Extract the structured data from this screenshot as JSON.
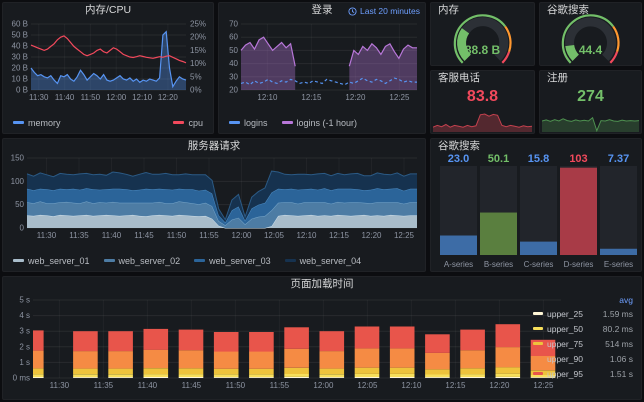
{
  "ui": {
    "time_badge": "Last 20 minutes",
    "clock_icon": "clock-icon"
  },
  "chart_data": [
    {
      "id": "memory_cpu",
      "type": "line",
      "title": "内存/CPU",
      "x_ticks": [
        "11:30",
        "11:40",
        "11:50",
        "12:00",
        "12:10",
        "12:20"
      ],
      "y_left": {
        "ticks": [
          "0 B",
          "10 B",
          "20 B",
          "30 B",
          "40 B",
          "50 B",
          "60 B"
        ],
        "min": 0,
        "max": 60
      },
      "y_right": {
        "ticks": [
          "0%",
          "5%",
          "10%",
          "15%",
          "20%",
          "25%"
        ],
        "min": 0,
        "max": 25
      },
      "legend_position": "bottom",
      "series": [
        {
          "name": "memory",
          "color": "#5794F2",
          "axis": "left",
          "area": true,
          "values": [
            20,
            16,
            13,
            14,
            12,
            11,
            13,
            9,
            6,
            13,
            12,
            14,
            10,
            8,
            12,
            18,
            14,
            9,
            12,
            15,
            13,
            10,
            14,
            9,
            8,
            9,
            11,
            13,
            10,
            9,
            11,
            8,
            10,
            7,
            9,
            8,
            10,
            9,
            8,
            11,
            50,
            53,
            20,
            3,
            8,
            12,
            10,
            9
          ]
        },
        {
          "name": "cpu",
          "color": "#F2495C",
          "axis": "right",
          "area": false,
          "values": [
            17,
            16.5,
            16,
            15.5,
            15,
            15.5,
            16.5,
            17.5,
            19,
            20,
            20.5,
            19.5,
            18,
            16.5,
            15.5,
            14.5,
            13.5,
            13,
            13.5,
            14,
            15,
            15.5,
            14.5,
            14,
            15,
            16,
            15.5,
            14.5,
            13.5,
            13,
            12.5,
            12.3,
            12.6,
            13,
            12.7,
            12.4,
            12.2,
            12,
            12.3,
            12.6,
            12.4,
            12.8,
            13,
            12.4,
            11.8,
            11.2,
            10.8,
            10.3
          ]
        }
      ]
    },
    {
      "id": "logins",
      "type": "line",
      "title": "登录",
      "x_ticks": [
        "12:10",
        "12:15",
        "12:20",
        "12:25"
      ],
      "y_left": {
        "ticks": [
          "20",
          "30",
          "40",
          "50",
          "60",
          "70"
        ],
        "min": 20,
        "max": 70
      },
      "series": [
        {
          "name": "logins",
          "color": "#5794F2",
          "dash": true,
          "area": false,
          "values": [
            25,
            26,
            24,
            27,
            25,
            26,
            28,
            26,
            25,
            27,
            26,
            28,
            27,
            25,
            26,
            25,
            27,
            26,
            25,
            28,
            27,
            26,
            25,
            24,
            26,
            25,
            27,
            29,
            27,
            26,
            28,
            27,
            25,
            27,
            29,
            28,
            26,
            27,
            26,
            26
          ]
        },
        {
          "name": "logins (-1 hour)",
          "color": "#B877D9",
          "area": true,
          "values": [
            50,
            54,
            56,
            51,
            58,
            60,
            55,
            50,
            53,
            56,
            52,
            55,
            38,
            null,
            null,
            null,
            null,
            null,
            null,
            null,
            null,
            null,
            null,
            null,
            38,
            50,
            47,
            53,
            50,
            55,
            52,
            47,
            53,
            55,
            49,
            44,
            51,
            54,
            52,
            52
          ]
        }
      ]
    },
    {
      "id": "server_requests",
      "type": "area-stacked",
      "title": "服务器请求",
      "x_ticks": [
        "11:30",
        "11:35",
        "11:40",
        "11:45",
        "11:50",
        "11:55",
        "12:00",
        "12:05",
        "12:10",
        "12:15",
        "12:20",
        "12:25"
      ],
      "y_ticks": [
        "0",
        "50",
        "100",
        "150"
      ],
      "y_max": 150,
      "series": [
        {
          "name": "web_server_01",
          "fill": "#A9BDCB",
          "line": "#CFE0EB",
          "values": [
            27,
            26,
            28,
            27,
            25,
            28,
            27,
            26,
            27,
            28,
            26,
            27,
            28,
            27,
            26,
            27,
            28,
            26,
            25,
            27,
            28,
            27,
            26,
            28,
            27,
            26,
            25,
            26,
            20,
            5,
            0,
            0,
            0,
            0,
            0,
            0,
            0,
            4,
            26,
            28,
            27,
            26,
            27,
            28,
            26,
            27,
            26,
            28,
            27,
            26,
            27,
            28,
            26,
            27,
            26,
            28,
            27,
            26,
            27,
            27
          ]
        },
        {
          "name": "web_server_02",
          "fill": "#4D7CA4",
          "line": "#77A5C8",
          "values": [
            28,
            27,
            29,
            26,
            28,
            27,
            29,
            28,
            26,
            29,
            27,
            28,
            26,
            29,
            28,
            27,
            26,
            28,
            29,
            27,
            28,
            26,
            27,
            29,
            28,
            27,
            26,
            28,
            27,
            10,
            6,
            18,
            22,
            8,
            20,
            24,
            26,
            34,
            28,
            27,
            28,
            26,
            28,
            27,
            29,
            28,
            26,
            28,
            27,
            29,
            28,
            26,
            27,
            28,
            29,
            27,
            28,
            26,
            28,
            28
          ]
        },
        {
          "name": "web_server_03",
          "fill": "#2B6499",
          "line": "#4C8BC2",
          "values": [
            29,
            28,
            27,
            30,
            28,
            29,
            27,
            30,
            29,
            28,
            30,
            27,
            29,
            28,
            30,
            29,
            27,
            28,
            30,
            29,
            28,
            30,
            29,
            27,
            28,
            30,
            29,
            28,
            27,
            12,
            6,
            20,
            24,
            8,
            22,
            26,
            28,
            38,
            30,
            28,
            29,
            30,
            28,
            29,
            27,
            30,
            29,
            28,
            30,
            29,
            28,
            27,
            29,
            30,
            28,
            29,
            30,
            28,
            29,
            29
          ]
        },
        {
          "name": "web_server_04",
          "fill": "#16324F",
          "line": "#2B5A85",
          "values": [
            32,
            30,
            34,
            31,
            29,
            33,
            32,
            30,
            34,
            32,
            31,
            33,
            30,
            36,
            34,
            32,
            30,
            33,
            35,
            32,
            31,
            34,
            32,
            30,
            33,
            31,
            34,
            32,
            28,
            14,
            6,
            22,
            26,
            8,
            24,
            28,
            32,
            46,
            36,
            32,
            30,
            33,
            32,
            30,
            34,
            32,
            31,
            33,
            30,
            32,
            34,
            31,
            30,
            33,
            32,
            30,
            33,
            31,
            32,
            32
          ]
        }
      ]
    },
    {
      "id": "google_bars",
      "type": "bar",
      "title": "谷歌搜索",
      "categories": [
        "A-series",
        "B-series",
        "C-series",
        "D-series",
        "E-series"
      ],
      "values": [
        23.0,
        50.1,
        15.8,
        103,
        7.37
      ],
      "value_labels": [
        "23.0",
        "50.1",
        "15.8",
        "103",
        "7.37"
      ],
      "label_colors": [
        "#5794F2",
        "#73BF69",
        "#5794F2",
        "#F2495C",
        "#5794F2"
      ],
      "bar_colors": [
        "#3D6CA6",
        "#5A7F3F",
        "#3D6CA6",
        "#A83B47",
        "#3D6CA6"
      ],
      "track_color": "#22252b",
      "max": 105
    },
    {
      "id": "page_load",
      "type": "bar-stacked",
      "title": "页面加载时间",
      "legend_header": "avg",
      "x_ticks": [
        "11:30",
        "11:35",
        "11:40",
        "11:45",
        "11:50",
        "11:55",
        "12:00",
        "12:05",
        "12:10",
        "12:15",
        "12:20",
        "12:25"
      ],
      "y_ticks": [
        "0 ms",
        "1 s",
        "2 s",
        "3 s",
        "4 s",
        "5 s"
      ],
      "y_max": 5,
      "totals_s": [
        3.05,
        3.0,
        3.0,
        3.15,
        3.1,
        2.95,
        2.95,
        3.25,
        3.0,
        3.3,
        3.3,
        2.8,
        3.1,
        3.45,
        2.45
      ],
      "stack_fractions": [
        0.02,
        0.08,
        0.2,
        0.575,
        1.0
      ],
      "series": [
        {
          "name": "upper_25",
          "color": "#FFF6D5",
          "avg": "1.59 ms"
        },
        {
          "name": "upper_50",
          "color": "#F7DF5B",
          "avg": "80.2 ms"
        },
        {
          "name": "upper_75",
          "color": "#EEC33C",
          "avg": "514 ms"
        },
        {
          "name": "upper_90",
          "color": "#F58B44",
          "avg": "1.06 s"
        },
        {
          "name": "upper_95",
          "color": "#E8554B",
          "avg": "1.51 s"
        }
      ]
    },
    {
      "id": "memory_gauge",
      "type": "gauge",
      "title": "内存",
      "display": "88.8 B",
      "fill_fraction": 0.3,
      "value_color": "#73BF69",
      "arc_color": "#73BF69",
      "track_color": "#2c3036",
      "thresholds": [
        {
          "color": "#73BF69",
          "to": 0.7
        },
        {
          "color": "#FF9830",
          "to": 0.9
        },
        {
          "color": "#F2495C",
          "to": 1.0
        }
      ]
    },
    {
      "id": "google_gauge",
      "type": "gauge",
      "title": "谷歌搜索",
      "display": "44.4",
      "fill_fraction": 0.14,
      "value_color": "#73BF69",
      "arc_color": "#73BF69",
      "track_color": "#2c3036",
      "thresholds": [
        {
          "color": "#73BF69",
          "to": 0.7
        },
        {
          "color": "#FF9830",
          "to": 0.9
        },
        {
          "color": "#F2495C",
          "to": 1.0
        }
      ]
    },
    {
      "id": "support_calls",
      "type": "sparkline",
      "title": "客服电话",
      "display": "83.8",
      "value_color": "#F2495C",
      "line_color": "#C4414E",
      "fill_color": "rgba(196,65,78,0.35)",
      "values": [
        0.22,
        0.3,
        0.24,
        0.34,
        0.22,
        0.3,
        0.26,
        0.22,
        0.3,
        0.24,
        0.28,
        0.78,
        0.82,
        0.72,
        0.8,
        0.76,
        0.3,
        0.24,
        0.3,
        0.26,
        0.22,
        0.28,
        0.24,
        0.26
      ]
    },
    {
      "id": "signups",
      "type": "sparkline",
      "title": "注册",
      "display": "274",
      "value_color": "#73BF69",
      "line_color": "#4E9150",
      "fill_color": "rgba(78,145,80,0.30)",
      "values": [
        0.5,
        0.55,
        0.48,
        0.56,
        0.5,
        0.6,
        0.52,
        0.48,
        0.55,
        0.5,
        0.53,
        0.5,
        0.65,
        0.06,
        0.52,
        0.5,
        0.56,
        0.5,
        0.48,
        0.54,
        0.5,
        0.52,
        0.5,
        0.52
      ]
    }
  ]
}
